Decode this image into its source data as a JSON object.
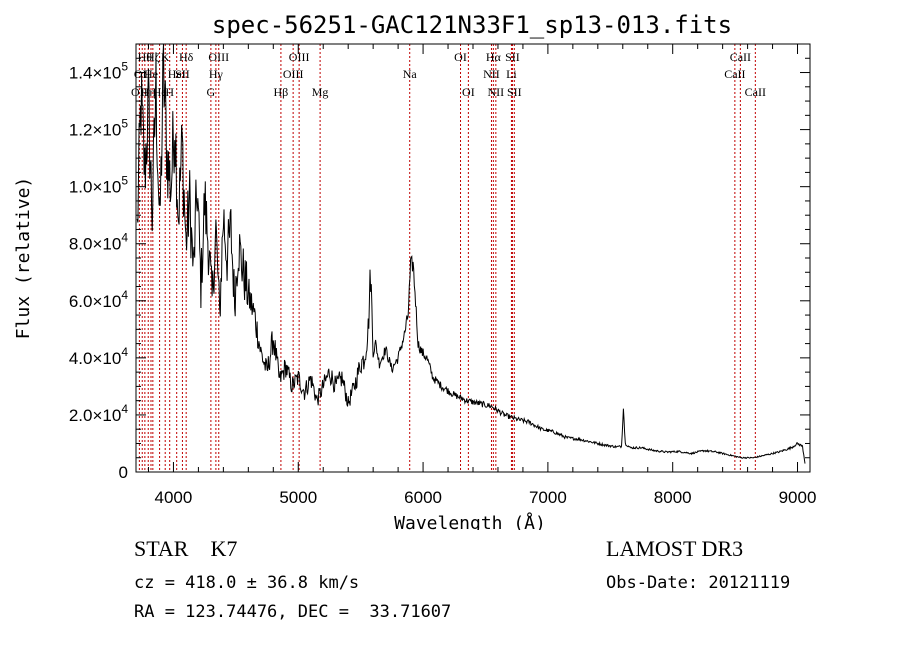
{
  "chart_data": {
    "type": "line",
    "title": "spec-56251-GAC121N33F1_sp13-013.fits",
    "xlabel": "Wavelength (Å)",
    "ylabel": "Flux (relative)",
    "xlim": [
      3700,
      9100
    ],
    "ylim": [
      0,
      150000
    ],
    "xticks": [
      {
        "value": 4000,
        "label": "4000"
      },
      {
        "value": 5000,
        "label": "5000"
      },
      {
        "value": 6000,
        "label": "6000"
      },
      {
        "value": 7000,
        "label": "7000"
      },
      {
        "value": 8000,
        "label": "8000"
      },
      {
        "value": 9000,
        "label": "9000"
      }
    ],
    "yticks": [
      {
        "value": 0,
        "mant": "0",
        "exp": ""
      },
      {
        "value": 20000,
        "mant": "2.0×10",
        "exp": "4"
      },
      {
        "value": 40000,
        "mant": "4.0×10",
        "exp": "4"
      },
      {
        "value": 60000,
        "mant": "6.0×10",
        "exp": "4"
      },
      {
        "value": 80000,
        "mant": "8.0×10",
        "exp": "4"
      },
      {
        "value": 100000,
        "mant": "1.0×10",
        "exp": "5"
      },
      {
        "value": 120000,
        "mant": "1.2×10",
        "exp": "5"
      },
      {
        "value": 140000,
        "mant": "1.4×10",
        "exp": "5"
      }
    ],
    "series": [
      {
        "name": "flux",
        "x": [
          3710,
          3740,
          3770,
          3800,
          3830,
          3860,
          3890,
          3920,
          3950,
          3980,
          4010,
          4040,
          4070,
          4100,
          4130,
          4160,
          4190,
          4220,
          4250,
          4280,
          4310,
          4340,
          4370,
          4400,
          4430,
          4460,
          4490,
          4520,
          4560,
          4600,
          4650,
          4700,
          4750,
          4800,
          4850,
          4900,
          4950,
          5000,
          5050,
          5100,
          5150,
          5200,
          5250,
          5300,
          5350,
          5400,
          5450,
          5500,
          5530,
          5560,
          5580,
          5600,
          5620,
          5650,
          5700,
          5750,
          5800,
          5850,
          5880,
          5900,
          5920,
          5940,
          5960,
          5990,
          6030,
          6080,
          6150,
          6250,
          6350,
          6450,
          6550,
          6650,
          6750,
          6850,
          6950,
          7050,
          7150,
          7250,
          7350,
          7450,
          7550,
          7590,
          7605,
          7620,
          7660,
          7750,
          7850,
          7950,
          8050,
          8150,
          8250,
          8350,
          8450,
          8550,
          8650,
          8750,
          8850,
          8950,
          9000,
          9040,
          9060
        ],
        "values": [
          85000,
          130000,
          105000,
          128000,
          90000,
          135000,
          85000,
          140000,
          110000,
          100000,
          125000,
          90000,
          115000,
          80000,
          95000,
          70000,
          100000,
          65000,
          95000,
          80000,
          60000,
          85000,
          55000,
          90000,
          75000,
          85000,
          60000,
          80000,
          70000,
          62000,
          55000,
          42000,
          35000,
          47000,
          32000,
          37000,
          30000,
          33000,
          28000,
          33000,
          25000,
          30000,
          35000,
          30000,
          33000,
          24000,
          30000,
          38000,
          40000,
          50000,
          70000,
          42000,
          45000,
          38000,
          43000,
          36000,
          40000,
          48000,
          55000,
          72000,
          73000,
          60000,
          45000,
          42000,
          40000,
          33000,
          30000,
          27000,
          25000,
          24000,
          23000,
          20000,
          18500,
          17500,
          15000,
          14000,
          12000,
          11500,
          10500,
          9500,
          8800,
          9000,
          23000,
          10000,
          8500,
          8500,
          7500,
          7000,
          7200,
          6500,
          7500,
          7000,
          6000,
          5000,
          5000,
          6000,
          7000,
          8500,
          10000,
          9000,
          3000
        ]
      }
    ],
    "lines": [
      {
        "wl": 3727,
        "label": "OII",
        "row": 3
      },
      {
        "wl": 3750,
        "label": "OII",
        "row": 2
      },
      {
        "wl": 3771,
        "label": "Hθ",
        "row": 1
      },
      {
        "wl": 3798,
        "label": "Hη",
        "row": 3
      },
      {
        "wl": 3820,
        "label": "He",
        "row": 2
      },
      {
        "wl": 3835,
        "label": "Hζ",
        "row": 1
      },
      {
        "wl": 3889,
        "label": "He",
        "row": 3
      },
      {
        "wl": 3934,
        "label": "K",
        "row": 1
      },
      {
        "wl": 3970,
        "label": "H",
        "row": 3
      },
      {
        "wl": 4026,
        "label": "HeI",
        "row": 2
      },
      {
        "wl": 4072,
        "label": "SII",
        "row": 2
      },
      {
        "wl": 4102,
        "label": "Hδ",
        "row": 1
      },
      {
        "wl": 4300,
        "label": "G",
        "row": 3
      },
      {
        "wl": 4340,
        "label": "Hγ",
        "row": 2
      },
      {
        "wl": 4363,
        "label": "OIII",
        "row": 1
      },
      {
        "wl": 4861,
        "label": "Hβ",
        "row": 3
      },
      {
        "wl": 4959,
        "label": "OIII",
        "row": 2
      },
      {
        "wl": 5007,
        "label": "OIII",
        "row": 1
      },
      {
        "wl": 5175,
        "label": "Mg",
        "row": 3
      },
      {
        "wl": 5893,
        "label": "Na",
        "row": 2
      },
      {
        "wl": 6300,
        "label": "OI",
        "row": 1
      },
      {
        "wl": 6363,
        "label": "OI",
        "row": 3
      },
      {
        "wl": 6548,
        "label": "NII",
        "row": 2
      },
      {
        "wl": 6563,
        "label": "Hα",
        "row": 1
      },
      {
        "wl": 6583,
        "label": "NII",
        "row": 3
      },
      {
        "wl": 6708,
        "label": "Li",
        "row": 2
      },
      {
        "wl": 6716,
        "label": "SII",
        "row": 1
      },
      {
        "wl": 6731,
        "label": "SII",
        "row": 3
      },
      {
        "wl": 8498,
        "label": "CaII",
        "row": 2
      },
      {
        "wl": 8542,
        "label": "CaII",
        "row": 1
      },
      {
        "wl": 8662,
        "label": "CaII",
        "row": 3
      }
    ]
  },
  "info": {
    "object": "STAR    K7",
    "survey": "LAMOST DR3",
    "cz": "cz = 418.0 ± 36.8 km/s",
    "obs_date": "Obs-Date: 20121119",
    "radec": "RA = 123.74476, DEC =  33.71607"
  }
}
